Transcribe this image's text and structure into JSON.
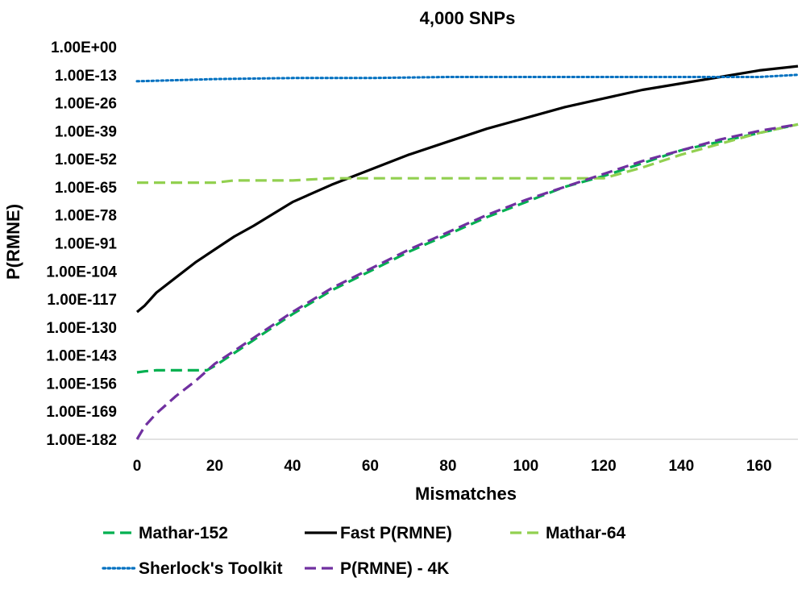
{
  "chart_data": {
    "type": "line",
    "title": "4,000 SNPs",
    "xlabel": "Mismatches",
    "ylabel": "P(RMNE)",
    "xlim": [
      0,
      170
    ],
    "ylim_log10": [
      -182,
      0
    ],
    "y_scale": "log",
    "x_ticks": [
      0,
      20,
      40,
      60,
      80,
      100,
      120,
      140,
      160
    ],
    "x_tick_labels": [
      "0",
      "20",
      "40",
      "60",
      "80",
      "100",
      "120",
      "140",
      "160"
    ],
    "y_ticks_log10": [
      0,
      -13,
      -26,
      -39,
      -52,
      -65,
      -78,
      -91,
      -104,
      -117,
      -130,
      -143,
      -156,
      -169,
      -182
    ],
    "y_tick_labels": [
      "1.00E+00",
      "1.00E-13",
      "1.00E-26",
      "1.00E-39",
      "1.00E-52",
      "1.00E-65",
      "1.00E-78",
      "1.00E-91",
      "1.00E-104",
      "1.00E-117",
      "1.00E-130",
      "1.00E-143",
      "1.00E-156",
      "1.00E-169",
      "1.00E-182"
    ],
    "grid": "none",
    "legend_position": "bottom",
    "series": [
      {
        "name": "Mathar-152",
        "color": "#00b050",
        "dash": "dashed",
        "x": [
          0,
          2,
          5,
          10,
          15,
          18,
          20,
          25,
          30,
          40,
          50,
          60,
          70,
          80,
          90,
          100,
          110,
          120,
          130,
          140,
          150,
          160,
          170
        ],
        "y_log10": [
          -151,
          -150.5,
          -150,
          -150,
          -150,
          -150,
          -148,
          -142,
          -136,
          -124,
          -113,
          -104,
          -95,
          -87,
          -79,
          -72,
          -65,
          -60,
          -54,
          -48,
          -44,
          -40,
          -36
        ]
      },
      {
        "name": "Fast P(RMNE)",
        "color": "#000000",
        "dash": "solid",
        "x": [
          0,
          2,
          5,
          10,
          15,
          20,
          25,
          30,
          40,
          50,
          60,
          70,
          80,
          90,
          100,
          110,
          120,
          130,
          140,
          150,
          160,
          170
        ],
        "y_log10": [
          -123,
          -120,
          -114,
          -107,
          -100,
          -94,
          -88,
          -83,
          -72,
          -64,
          -57,
          -50,
          -44,
          -38,
          -33,
          -28,
          -24,
          -20,
          -17,
          -14,
          -11,
          -9
        ]
      },
      {
        "name": "Mathar-64",
        "color": "#92d050",
        "dash": "dashed",
        "x": [
          0,
          10,
          20,
          25,
          30,
          40,
          50,
          60,
          70,
          80,
          90,
          100,
          110,
          120,
          130,
          140,
          150,
          160,
          170
        ],
        "y_log10": [
          -63,
          -63,
          -63,
          -62,
          -62,
          -62,
          -61,
          -61,
          -61,
          -61,
          -61,
          -61,
          -61,
          -61,
          -56,
          -50,
          -45,
          -40,
          -36
        ]
      },
      {
        "name": "Sherlock's Toolkit",
        "color": "#0070c0",
        "dash": "dotted",
        "x": [
          0,
          10,
          20,
          40,
          60,
          80,
          100,
          120,
          140,
          160,
          170
        ],
        "y_log10": [
          -16,
          -15.5,
          -15,
          -14.5,
          -14.5,
          -14,
          -14,
          -14,
          -14,
          -14,
          -13
        ]
      },
      {
        "name": "P(RMNE) - 4K",
        "color": "#7030a0",
        "dash": "dashed",
        "x": [
          0,
          2,
          5,
          10,
          15,
          20,
          25,
          30,
          40,
          50,
          60,
          70,
          80,
          90,
          100,
          110,
          120,
          130,
          140,
          150,
          160,
          170
        ],
        "y_log10": [
          -182,
          -176,
          -170,
          -162,
          -155,
          -147,
          -141,
          -135,
          -123,
          -112,
          -103,
          -94,
          -86,
          -78,
          -71,
          -65,
          -59,
          -53,
          -48,
          -43,
          -39,
          -36
        ]
      }
    ]
  }
}
